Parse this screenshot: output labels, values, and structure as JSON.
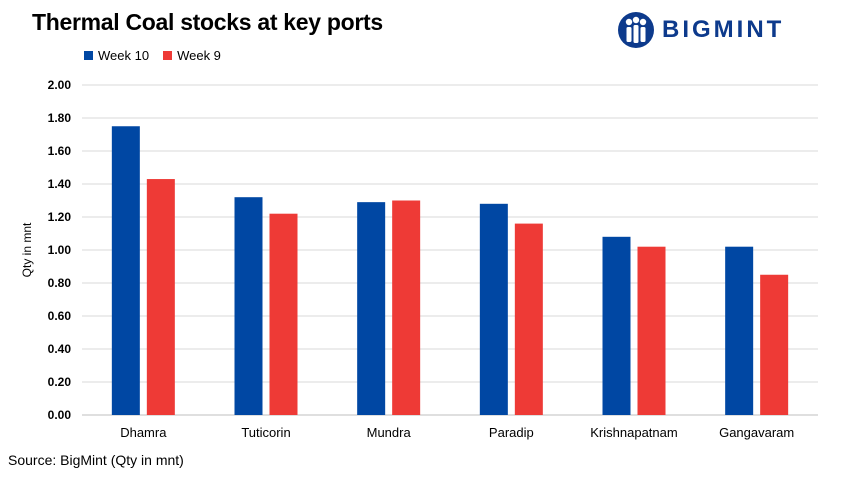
{
  "title": "Thermal Coal stocks at key ports",
  "logo": {
    "text": "BIGMINT",
    "color": "#0d3a8c"
  },
  "source": "Source: BigMint (Qty in mnt)",
  "colors": {
    "week10": "#0047a3",
    "week9": "#ee3a36",
    "grid": "#d9d9d9",
    "axis": "#bfbfbf"
  },
  "chart_data": {
    "type": "bar",
    "title": "Thermal Coal stocks at key ports",
    "xlabel": "",
    "ylabel": "Qty in mnt",
    "categories": [
      "Dhamra",
      "Tuticorin",
      "Mundra",
      "Paradip",
      "Krishnapatnam",
      "Gangavaram"
    ],
    "series": [
      {
        "name": "Week 10",
        "color": "#0047a3",
        "values": [
          1.75,
          1.32,
          1.29,
          1.28,
          1.08,
          1.02
        ]
      },
      {
        "name": "Week 9",
        "color": "#ee3a36",
        "values": [
          1.43,
          1.22,
          1.3,
          1.16,
          1.02,
          0.85
        ]
      }
    ],
    "ylim": [
      0,
      2.0
    ],
    "yticks": [
      "0.00",
      "0.20",
      "0.40",
      "0.60",
      "0.80",
      "1.00",
      "1.20",
      "1.40",
      "1.60",
      "1.80",
      "2.00"
    ],
    "grid": true,
    "legend_position": "top-left"
  }
}
